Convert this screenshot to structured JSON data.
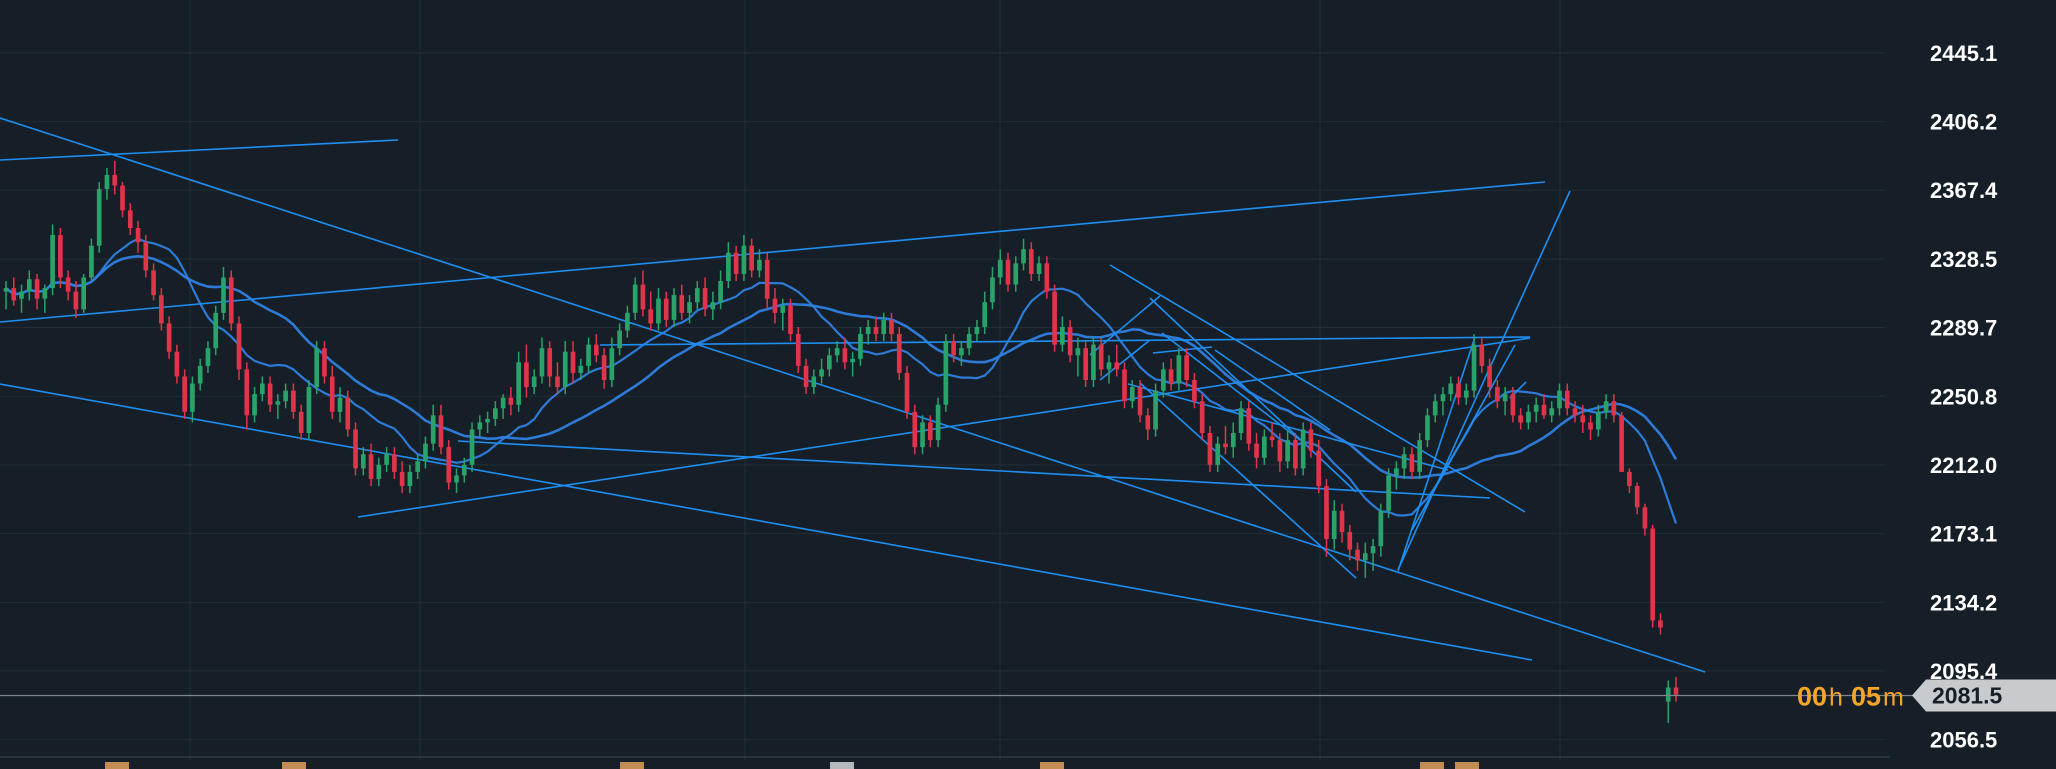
{
  "colors": {
    "background": "#161f27",
    "grid": "#222d36",
    "up": "#29a36a",
    "down": "#e0344a",
    "ma": "#2f7fe0",
    "trendline": "#1e8ff2",
    "price_line": "#7d848a",
    "price_box": "#c8cbce",
    "timer": "#f3a52a"
  },
  "countdown": {
    "hours": "00",
    "hours_unit": "h",
    "minutes": "05",
    "minutes_unit": "m"
  },
  "chart_data": {
    "type": "candlestick",
    "ylim": [
      2045,
      2475
    ],
    "y_ticks": [
      "2445.1",
      "2406.2",
      "2367.4",
      "2328.5",
      "2289.7",
      "2250.8",
      "2212.0",
      "2173.1",
      "2134.2",
      "2095.4",
      "2056.5"
    ],
    "current_price": "2081.5",
    "ohlc": [
      [
        2310,
        2316,
        2300,
        2312
      ],
      [
        2312,
        2318,
        2302,
        2305
      ],
      [
        2306,
        2314,
        2298,
        2310
      ],
      [
        2310,
        2322,
        2305,
        2317
      ],
      [
        2317,
        2320,
        2300,
        2306
      ],
      [
        2306,
        2314,
        2298,
        2312
      ],
      [
        2312,
        2348,
        2308,
        2342
      ],
      [
        2342,
        2346,
        2312,
        2318
      ],
      [
        2318,
        2322,
        2305,
        2310
      ],
      [
        2310,
        2316,
        2295,
        2300
      ],
      [
        2300,
        2320,
        2298,
        2318
      ],
      [
        2318,
        2340,
        2316,
        2336
      ],
      [
        2336,
        2372,
        2332,
        2368
      ],
      [
        2368,
        2380,
        2362,
        2376
      ],
      [
        2376,
        2384,
        2365,
        2370
      ],
      [
        2370,
        2372,
        2352,
        2356
      ],
      [
        2356,
        2360,
        2342,
        2346
      ],
      [
        2346,
        2350,
        2332,
        2338
      ],
      [
        2338,
        2342,
        2318,
        2322
      ],
      [
        2322,
        2326,
        2305,
        2308
      ],
      [
        2308,
        2312,
        2288,
        2292
      ],
      [
        2292,
        2296,
        2272,
        2276
      ],
      [
        2276,
        2280,
        2258,
        2262
      ],
      [
        2262,
        2266,
        2238,
        2242
      ],
      [
        2242,
        2262,
        2236,
        2258
      ],
      [
        2258,
        2272,
        2254,
        2268
      ],
      [
        2268,
        2282,
        2264,
        2278
      ],
      [
        2278,
        2302,
        2274,
        2298
      ],
      [
        2298,
        2324,
        2294,
        2318
      ],
      [
        2318,
        2322,
        2288,
        2292
      ],
      [
        2292,
        2296,
        2260,
        2266
      ],
      [
        2266,
        2270,
        2232,
        2240
      ],
      [
        2240,
        2256,
        2236,
        2252
      ],
      [
        2252,
        2262,
        2248,
        2258
      ],
      [
        2258,
        2262,
        2242,
        2246
      ],
      [
        2246,
        2252,
        2238,
        2248
      ],
      [
        2248,
        2258,
        2244,
        2254
      ],
      [
        2254,
        2258,
        2238,
        2242
      ],
      [
        2242,
        2246,
        2226,
        2230
      ],
      [
        2230,
        2260,
        2226,
        2256
      ],
      [
        2256,
        2282,
        2252,
        2278
      ],
      [
        2278,
        2282,
        2258,
        2262
      ],
      [
        2262,
        2268,
        2238,
        2242
      ],
      [
        2242,
        2256,
        2236,
        2250
      ],
      [
        2250,
        2254,
        2228,
        2232
      ],
      [
        2232,
        2236,
        2206,
        2210
      ],
      [
        2210,
        2222,
        2206,
        2218
      ],
      [
        2218,
        2224,
        2200,
        2204
      ],
      [
        2204,
        2216,
        2200,
        2212
      ],
      [
        2212,
        2222,
        2208,
        2218
      ],
      [
        2218,
        2222,
        2204,
        2208
      ],
      [
        2208,
        2214,
        2196,
        2200
      ],
      [
        2200,
        2212,
        2196,
        2208
      ],
      [
        2208,
        2218,
        2204,
        2214
      ],
      [
        2214,
        2228,
        2210,
        2224
      ],
      [
        2224,
        2246,
        2220,
        2240
      ],
      [
        2240,
        2246,
        2218,
        2222
      ],
      [
        2222,
        2226,
        2198,
        2202
      ],
      [
        2202,
        2210,
        2196,
        2206
      ],
      [
        2206,
        2216,
        2202,
        2212
      ],
      [
        2212,
        2236,
        2208,
        2232
      ],
      [
        2232,
        2240,
        2228,
        2236
      ],
      [
        2236,
        2242,
        2230,
        2238
      ],
      [
        2238,
        2248,
        2234,
        2244
      ],
      [
        2244,
        2252,
        2238,
        2250
      ],
      [
        2250,
        2256,
        2240,
        2246
      ],
      [
        2246,
        2276,
        2242,
        2270
      ],
      [
        2270,
        2280,
        2250,
        2256
      ],
      [
        2256,
        2266,
        2252,
        2262
      ],
      [
        2262,
        2284,
        2258,
        2278
      ],
      [
        2278,
        2282,
        2256,
        2262
      ],
      [
        2262,
        2270,
        2252,
        2256
      ],
      [
        2256,
        2282,
        2252,
        2276
      ],
      [
        2276,
        2282,
        2258,
        2264
      ],
      [
        2264,
        2272,
        2260,
        2268
      ],
      [
        2268,
        2284,
        2264,
        2280
      ],
      [
        2280,
        2286,
        2270,
        2274
      ],
      [
        2274,
        2278,
        2255,
        2260
      ],
      [
        2260,
        2284,
        2256,
        2278
      ],
      [
        2278,
        2292,
        2274,
        2288
      ],
      [
        2288,
        2302,
        2284,
        2298
      ],
      [
        2298,
        2318,
        2294,
        2314
      ],
      [
        2314,
        2322,
        2296,
        2300
      ],
      [
        2300,
        2310,
        2288,
        2292
      ],
      [
        2292,
        2312,
        2288,
        2306
      ],
      [
        2306,
        2310,
        2290,
        2294
      ],
      [
        2294,
        2312,
        2290,
        2308
      ],
      [
        2308,
        2314,
        2294,
        2298
      ],
      [
        2298,
        2308,
        2292,
        2304
      ],
      [
        2304,
        2316,
        2300,
        2312
      ],
      [
        2312,
        2318,
        2296,
        2300
      ],
      [
        2300,
        2310,
        2294,
        2304
      ],
      [
        2304,
        2322,
        2300,
        2316
      ],
      [
        2316,
        2338,
        2312,
        2332
      ],
      [
        2332,
        2336,
        2316,
        2320
      ],
      [
        2320,
        2342,
        2316,
        2336
      ],
      [
        2336,
        2340,
        2318,
        2322
      ],
      [
        2322,
        2334,
        2318,
        2328
      ],
      [
        2328,
        2332,
        2300,
        2306
      ],
      [
        2306,
        2312,
        2292,
        2298
      ],
      [
        2298,
        2306,
        2288,
        2302
      ],
      [
        2302,
        2306,
        2282,
        2286
      ],
      [
        2286,
        2290,
        2264,
        2268
      ],
      [
        2268,
        2272,
        2252,
        2256
      ],
      [
        2256,
        2266,
        2252,
        2262
      ],
      [
        2262,
        2272,
        2258,
        2266
      ],
      [
        2266,
        2278,
        2262,
        2274
      ],
      [
        2274,
        2282,
        2270,
        2278
      ],
      [
        2278,
        2284,
        2266,
        2270
      ],
      [
        2270,
        2276,
        2262,
        2272
      ],
      [
        2272,
        2290,
        2268,
        2286
      ],
      [
        2286,
        2294,
        2280,
        2290
      ],
      [
        2290,
        2296,
        2282,
        2286
      ],
      [
        2286,
        2298,
        2282,
        2294
      ],
      [
        2294,
        2298,
        2282,
        2286
      ],
      [
        2286,
        2290,
        2260,
        2264
      ],
      [
        2264,
        2268,
        2238,
        2242
      ],
      [
        2242,
        2246,
        2218,
        2222
      ],
      [
        2222,
        2240,
        2218,
        2236
      ],
      [
        2236,
        2240,
        2222,
        2226
      ],
      [
        2226,
        2250,
        2222,
        2246
      ],
      [
        2246,
        2286,
        2242,
        2282
      ],
      [
        2282,
        2286,
        2270,
        2274
      ],
      [
        2274,
        2282,
        2268,
        2278
      ],
      [
        2278,
        2290,
        2274,
        2286
      ],
      [
        2286,
        2294,
        2282,
        2290
      ],
      [
        2290,
        2310,
        2286,
        2304
      ],
      [
        2304,
        2324,
        2300,
        2318
      ],
      [
        2318,
        2334,
        2314,
        2328
      ],
      [
        2328,
        2332,
        2310,
        2314
      ],
      [
        2314,
        2330,
        2310,
        2326
      ],
      [
        2326,
        2340,
        2322,
        2334
      ],
      [
        2334,
        2338,
        2316,
        2320
      ],
      [
        2320,
        2330,
        2316,
        2326
      ],
      [
        2326,
        2330,
        2306,
        2310
      ],
      [
        2310,
        2314,
        2276,
        2280
      ],
      [
        2280,
        2296,
        2276,
        2290
      ],
      [
        2290,
        2294,
        2270,
        2274
      ],
      [
        2274,
        2284,
        2262,
        2278
      ],
      [
        2278,
        2282,
        2256,
        2260
      ],
      [
        2260,
        2284,
        2256,
        2280
      ],
      [
        2280,
        2284,
        2262,
        2266
      ],
      [
        2266,
        2274,
        2258,
        2270
      ],
      [
        2270,
        2280,
        2262,
        2266
      ],
      [
        2266,
        2270,
        2244,
        2248
      ],
      [
        2248,
        2260,
        2244,
        2256
      ],
      [
        2256,
        2260,
        2236,
        2240
      ],
      [
        2240,
        2244,
        2226,
        2232
      ],
      [
        2232,
        2258,
        2228,
        2254
      ],
      [
        2254,
        2270,
        2250,
        2266
      ],
      [
        2266,
        2272,
        2254,
        2258
      ],
      [
        2258,
        2278,
        2254,
        2274
      ],
      [
        2274,
        2278,
        2256,
        2260
      ],
      [
        2260,
        2264,
        2244,
        2248
      ],
      [
        2248,
        2252,
        2226,
        2230
      ],
      [
        2230,
        2234,
        2208,
        2212
      ],
      [
        2212,
        2228,
        2208,
        2224
      ],
      [
        2224,
        2234,
        2218,
        2222
      ],
      [
        2222,
        2236,
        2216,
        2230
      ],
      [
        2230,
        2248,
        2226,
        2244
      ],
      [
        2244,
        2248,
        2220,
        2224
      ],
      [
        2224,
        2230,
        2210,
        2216
      ],
      [
        2216,
        2232,
        2212,
        2228
      ],
      [
        2228,
        2236,
        2222,
        2226
      ],
      [
        2226,
        2230,
        2208,
        2214
      ],
      [
        2214,
        2232,
        2210,
        2226
      ],
      [
        2226,
        2230,
        2206,
        2210
      ],
      [
        2210,
        2236,
        2206,
        2232
      ],
      [
        2232,
        2236,
        2216,
        2220
      ],
      [
        2220,
        2226,
        2196,
        2200
      ],
      [
        2200,
        2204,
        2160,
        2170
      ],
      [
        2170,
        2192,
        2164,
        2186
      ],
      [
        2186,
        2190,
        2168,
        2174
      ],
      [
        2174,
        2178,
        2158,
        2164
      ],
      [
        2164,
        2168,
        2152,
        2158
      ],
      [
        2158,
        2168,
        2148,
        2162
      ],
      [
        2162,
        2170,
        2152,
        2166
      ],
      [
        2166,
        2190,
        2160,
        2186
      ],
      [
        2186,
        2210,
        2182,
        2206
      ],
      [
        2206,
        2214,
        2198,
        2210
      ],
      [
        2210,
        2222,
        2204,
        2218
      ],
      [
        2218,
        2222,
        2204,
        2208
      ],
      [
        2208,
        2230,
        2204,
        2226
      ],
      [
        2226,
        2244,
        2222,
        2240
      ],
      [
        2240,
        2252,
        2236,
        2248
      ],
      [
        2248,
        2256,
        2240,
        2252
      ],
      [
        2252,
        2262,
        2248,
        2258
      ],
      [
        2258,
        2262,
        2246,
        2250
      ],
      [
        2250,
        2258,
        2246,
        2254
      ],
      [
        2254,
        2286,
        2250,
        2280
      ],
      [
        2280,
        2284,
        2264,
        2268
      ],
      [
        2268,
        2272,
        2250,
        2256
      ],
      [
        2256,
        2260,
        2244,
        2248
      ],
      [
        2248,
        2256,
        2240,
        2252
      ],
      [
        2252,
        2256,
        2236,
        2240
      ],
      [
        2240,
        2244,
        2232,
        2236
      ],
      [
        2236,
        2246,
        2232,
        2242
      ],
      [
        2242,
        2250,
        2236,
        2246
      ],
      [
        2246,
        2252,
        2238,
        2240
      ],
      [
        2240,
        2248,
        2236,
        2244
      ],
      [
        2244,
        2258,
        2240,
        2254
      ],
      [
        2254,
        2258,
        2240,
        2244
      ],
      [
        2244,
        2248,
        2236,
        2240
      ],
      [
        2240,
        2246,
        2230,
        2236
      ],
      [
        2236,
        2240,
        2226,
        2232
      ],
      [
        2232,
        2246,
        2228,
        2242
      ],
      [
        2242,
        2252,
        2238,
        2248
      ],
      [
        2248,
        2252,
        2236,
        2240
      ],
      [
        2240,
        2242,
        2212,
        2208
      ],
      [
        2208,
        2210,
        2196,
        2200
      ],
      [
        2200,
        2202,
        2184,
        2188
      ],
      [
        2188,
        2190,
        2172,
        2176
      ],
      [
        2176,
        2178,
        2120,
        2124
      ],
      [
        2124,
        2128,
        2116,
        2120
      ],
      [
        2078,
        2090,
        2066,
        2086
      ],
      [
        2086,
        2092,
        2078,
        2082
      ]
    ]
  }
}
